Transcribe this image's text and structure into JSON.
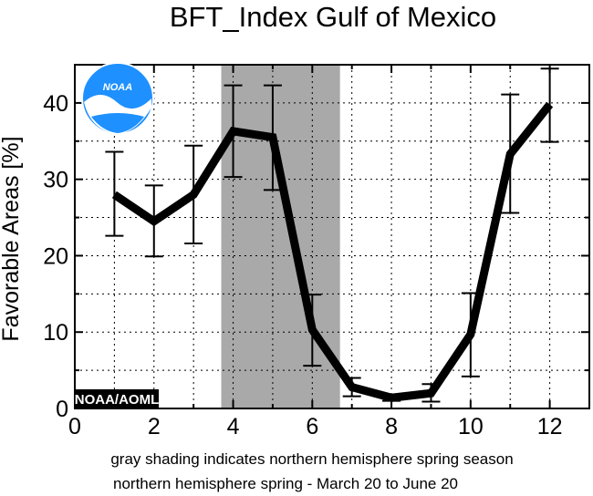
{
  "chart_data": {
    "type": "line",
    "title": "BFT_Index Gulf of Mexico",
    "ylabel": "Favorable Areas [%]",
    "xlabel": "",
    "xlim": [
      0,
      13
    ],
    "ylim": [
      0,
      45
    ],
    "xticks": [
      "0",
      "2",
      "4",
      "6",
      "8",
      "10",
      "12"
    ],
    "yticks": [
      "0",
      "10",
      "20",
      "30",
      "40"
    ],
    "grid": true,
    "shaded_region": {
      "x_start": 3.7,
      "x_end": 6.7,
      "color": "#a9a9a9"
    },
    "series": [
      {
        "x": [
          1,
          2,
          3,
          4,
          5,
          6,
          7,
          8,
          9,
          10,
          11,
          12
        ],
        "y": [
          28.0,
          24.5,
          28.0,
          36.3,
          35.5,
          10.3,
          2.8,
          1.4,
          2.0,
          9.7,
          33.3,
          39.8
        ],
        "error_low": [
          22.6,
          19.9,
          21.6,
          30.3,
          28.6,
          5.6,
          1.6,
          1.0,
          0.9,
          4.2,
          25.6,
          34.9
        ],
        "error_high": [
          33.6,
          29.2,
          34.4,
          42.3,
          42.3,
          14.9,
          4.0,
          1.8,
          3.2,
          15.1,
          41.1,
          44.5
        ]
      }
    ],
    "captions": [
      "gray shading indicates northern hemisphere spring season",
      "northern hemisphere spring - March 20 to June 20"
    ],
    "badge": "NOAA/AOML",
    "logo_text": "NOAA"
  }
}
